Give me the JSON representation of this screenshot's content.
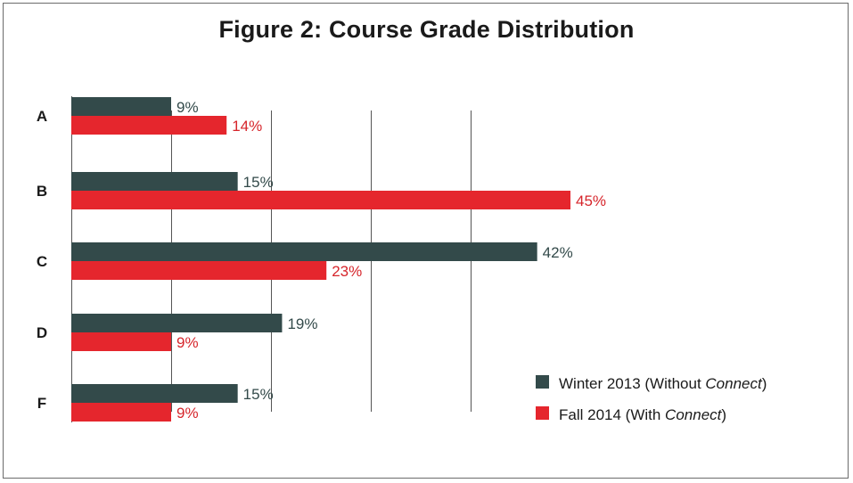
{
  "chart_data": {
    "type": "bar",
    "orientation": "horizontal",
    "title": "Figure 2: Course Grade Distribution",
    "categories": [
      "A",
      "B",
      "C",
      "D",
      "F"
    ],
    "series": [
      {
        "name": "Winter 2013 (Without Connect)",
        "name_parts": [
          {
            "text": "Winter 2013 (Without ",
            "italic": false
          },
          {
            "text": "Connect",
            "italic": true
          },
          {
            "text": ")",
            "italic": false
          }
        ],
        "color": "#334a4a",
        "label_color": "#334a4a",
        "values": [
          9,
          15,
          42,
          19,
          15
        ],
        "labels": [
          "9%",
          "15%",
          "42%",
          "19%",
          "15%"
        ]
      },
      {
        "name": "Fall 2014 (With Connect)",
        "name_parts": [
          {
            "text": "Fall 2014 (With ",
            "italic": false
          },
          {
            "text": "Connect",
            "italic": true
          },
          {
            "text": ")",
            "italic": false
          }
        ],
        "color": "#e5262d",
        "label_color": "#d6252b",
        "values": [
          14,
          45,
          23,
          9,
          9
        ],
        "labels": [
          "14%",
          "45%",
          "23%",
          "9%",
          "9%"
        ]
      }
    ],
    "xlim": [
      0,
      45
    ],
    "grid": true,
    "gridline_values": [
      9,
      18,
      27,
      36
    ],
    "legend_position": "bottom-right"
  }
}
